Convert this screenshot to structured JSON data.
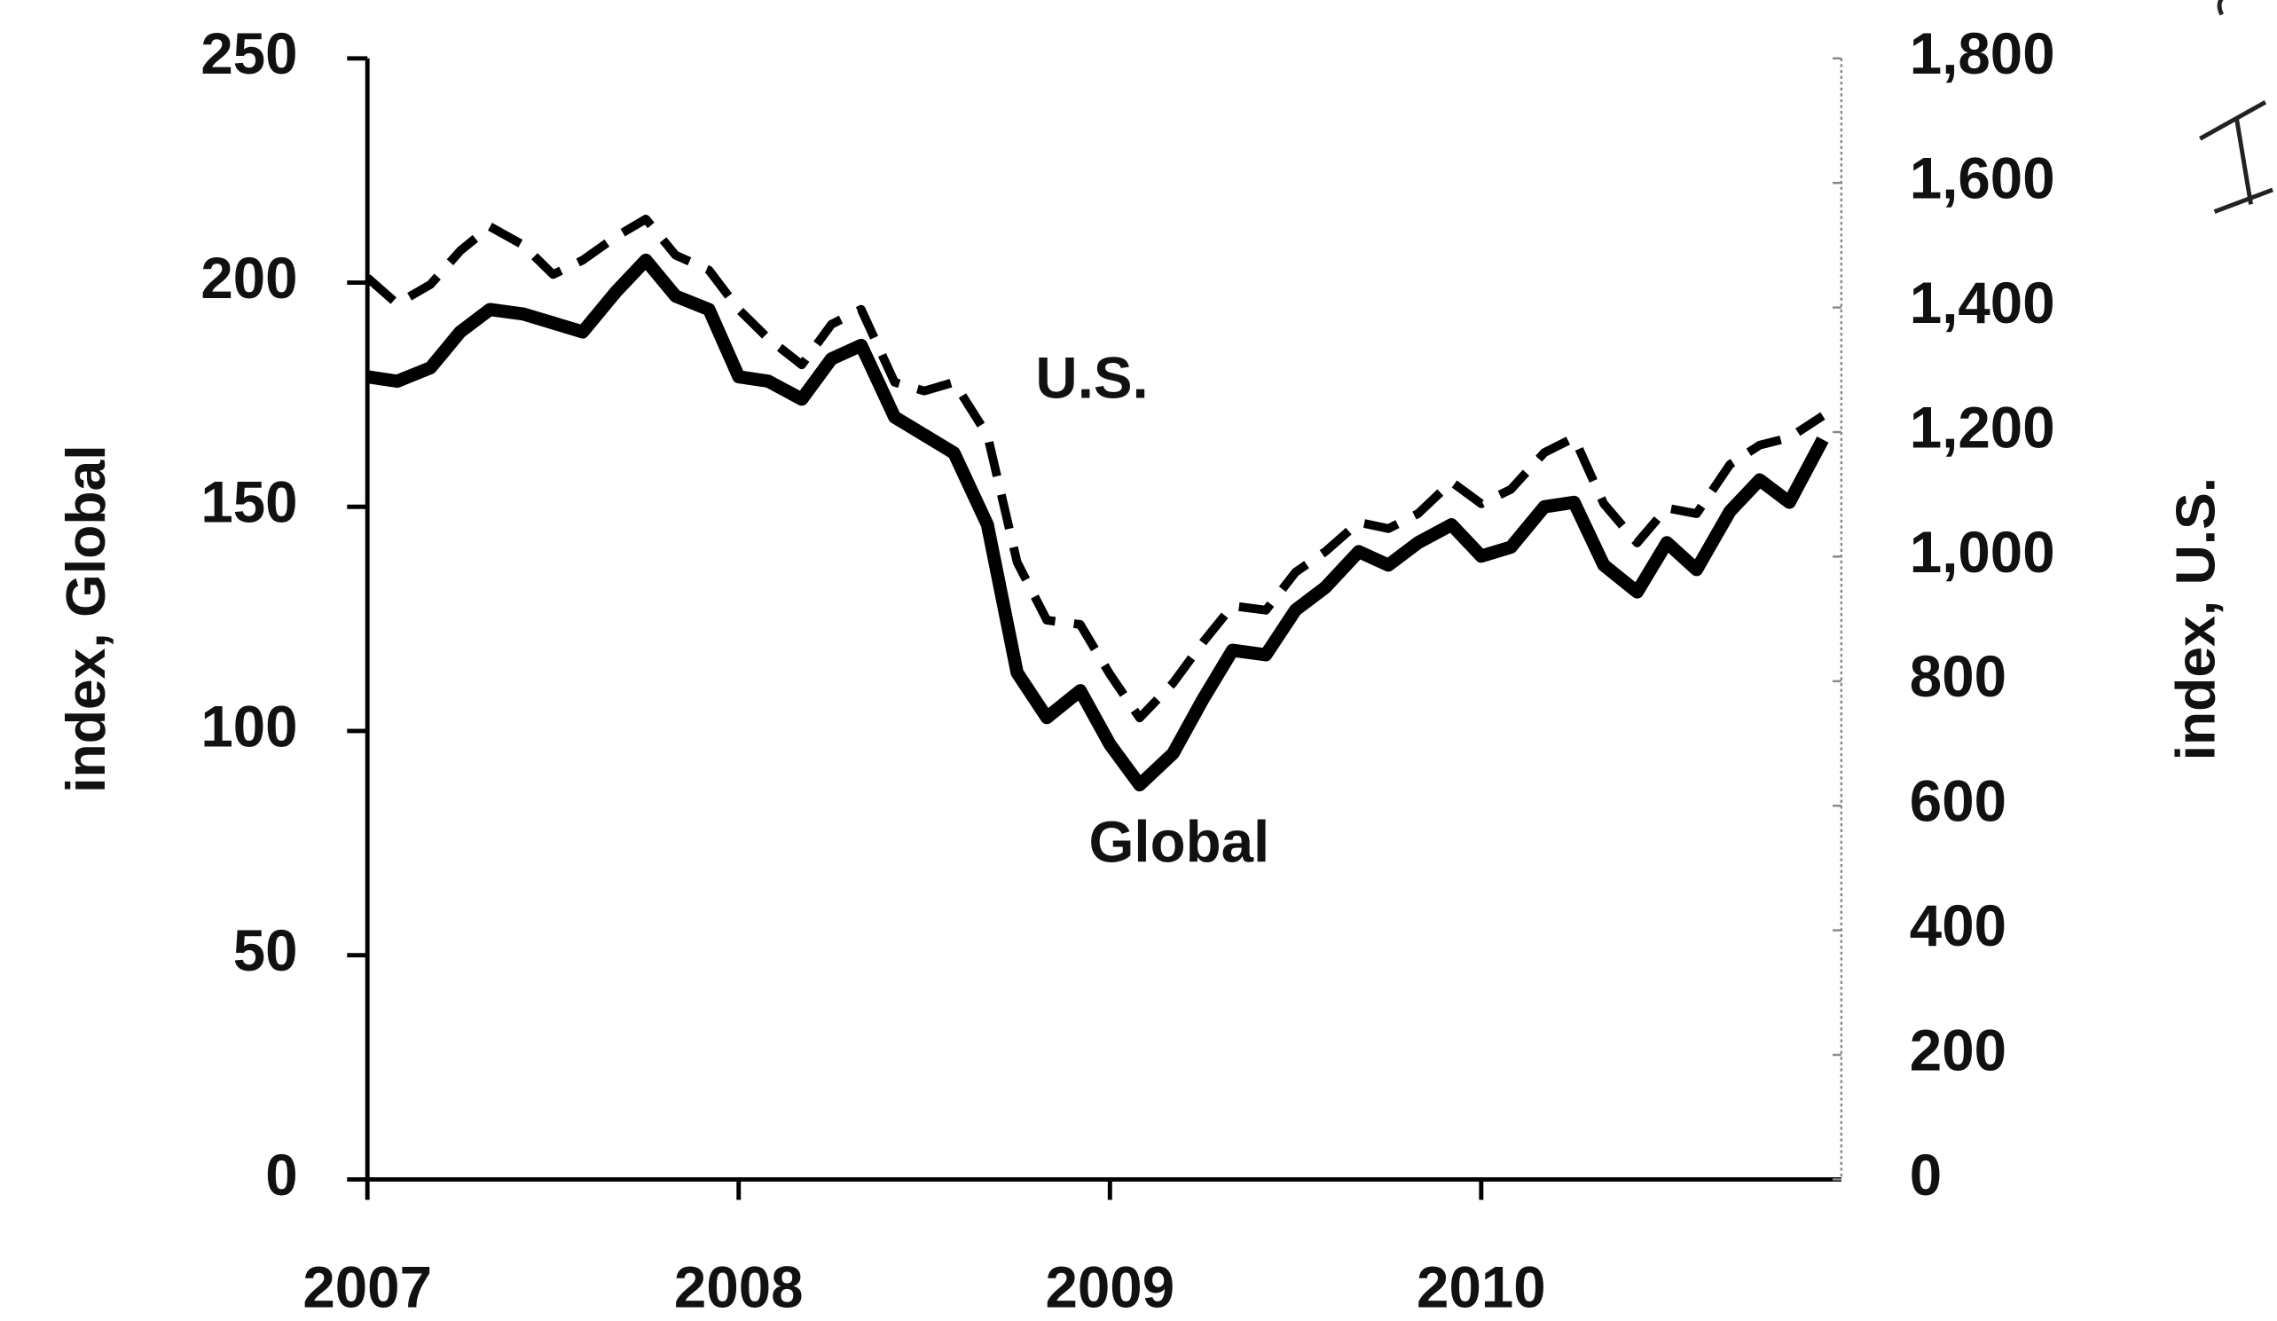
{
  "chart_data": {
    "type": "line",
    "xlim": [
      2007,
      2010.97
    ],
    "xticks": [
      2007,
      2008,
      2009,
      2010
    ],
    "ylim": [
      0,
      250
    ],
    "yticks": [
      0,
      50,
      100,
      150,
      200,
      250
    ],
    "y2lim": [
      0,
      1800
    ],
    "y2ticks": [
      0,
      200,
      400,
      600,
      800,
      {
        "value": 1000,
        "label": "1,000"
      },
      {
        "value": 1200,
        "label": "1,200"
      },
      {
        "value": 1400,
        "label": "1,400"
      },
      {
        "value": 1600,
        "label": "1,600"
      },
      {
        "value": 1800,
        "label": "1,800"
      }
    ],
    "ylabel": "index, Global",
    "y2label": "index, U.S.",
    "annotations": [
      "U.S.",
      "Global"
    ],
    "x": [
      2007.0,
      2007.08,
      2007.17,
      2007.25,
      2007.33,
      2007.42,
      2007.5,
      2007.58,
      2007.67,
      2007.75,
      2007.83,
      2007.92,
      2008.0,
      2008.08,
      2008.17,
      2008.25,
      2008.33,
      2008.42,
      2008.5,
      2008.58,
      2008.67,
      2008.75,
      2008.83,
      2008.92,
      2009.0,
      2009.08,
      2009.17,
      2009.25,
      2009.33,
      2009.42,
      2009.5,
      2009.58,
      2009.67,
      2009.75,
      2009.83,
      2009.92,
      2010.0,
      2010.08,
      2010.17,
      2010.25,
      2010.33,
      2010.42,
      2010.5,
      2010.58,
      2010.67,
      2010.75,
      2010.83,
      2010.92
    ],
    "series": [
      {
        "name": "Global",
        "color": "#000000",
        "dash": false,
        "values": [
          179,
          178,
          181,
          189,
          194,
          193,
          191,
          189,
          198,
          205,
          197,
          194,
          179,
          178,
          174,
          183,
          186,
          170,
          166,
          162,
          146,
          113,
          103,
          109,
          97,
          88,
          95,
          107,
          118,
          117,
          127,
          132,
          140,
          137,
          142,
          146,
          139,
          141,
          150,
          151,
          137,
          131,
          142,
          136,
          149,
          156,
          151,
          165
        ]
      },
      {
        "name": "U.S.",
        "color": "#000000",
        "dash": true,
        "axis": "y2",
        "values": [
          1448,
          1406,
          1437,
          1491,
          1530,
          1500,
          1453,
          1476,
          1514,
          1542,
          1484,
          1460,
          1397,
          1350,
          1308,
          1373,
          1397,
          1280,
          1266,
          1280,
          1195,
          991,
          898,
          891,
          811,
          741,
          797,
          862,
          921,
          914,
          975,
          1008,
          1055,
          1045,
          1069,
          1120,
          1085,
          1108,
          1167,
          1191,
          1085,
          1022,
          1078,
          1069,
          1148,
          1179,
          1191,
          1226
        ]
      }
    ]
  }
}
